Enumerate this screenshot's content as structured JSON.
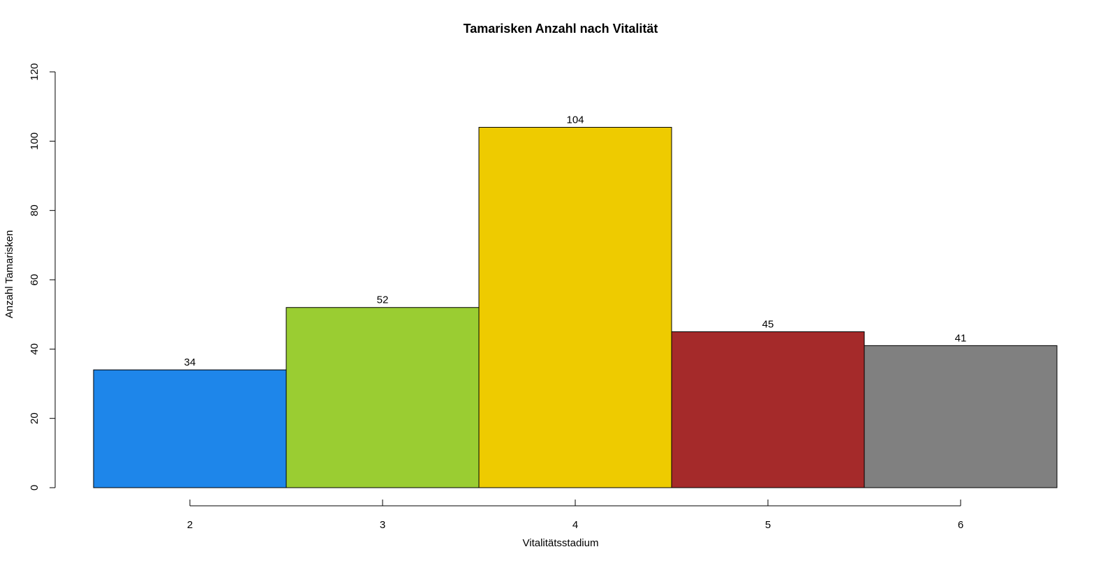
{
  "chart_data": {
    "type": "bar",
    "title": "Tamarisken Anzahl nach Vitalität",
    "xlabel": "Vitalitätsstadium",
    "ylabel": "Anzahl Tamarisken",
    "categories": [
      "2",
      "3",
      "4",
      "5",
      "6"
    ],
    "values": [
      34,
      52,
      104,
      45,
      41
    ],
    "data_labels": [
      "34",
      "52",
      "104",
      "45",
      "41"
    ],
    "colors": [
      "#1e86ea",
      "#9acd32",
      "#eecb00",
      "#a52a2a",
      "#808080"
    ],
    "ylim": [
      0,
      120
    ],
    "yticks": [
      0,
      20,
      40,
      60,
      80,
      100,
      120
    ],
    "grid": false,
    "legend": false
  }
}
